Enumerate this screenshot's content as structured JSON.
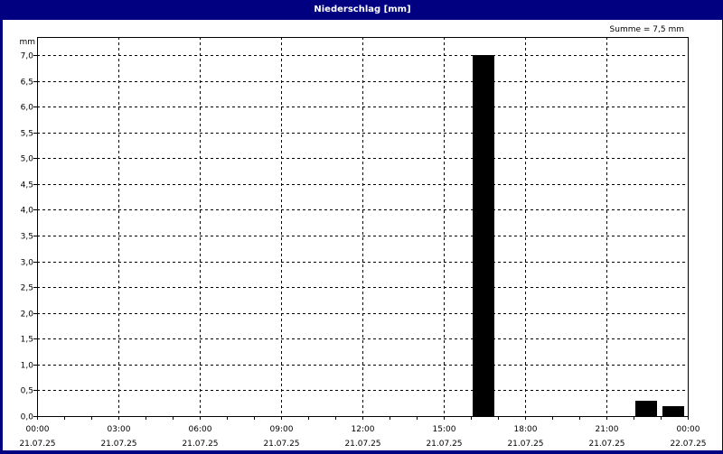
{
  "window": {
    "title": "Niederschlag [mm]"
  },
  "chart_data": {
    "type": "bar",
    "title": "Niederschlag [mm]",
    "ylabel": "mm",
    "annotation": "Summe = 7,5 mm",
    "ylim": [
      0,
      7.35
    ],
    "yticks": [
      "0,0",
      "0,5",
      "1,0",
      "1,5",
      "2,0",
      "2,5",
      "3,0",
      "3,5",
      "4,0",
      "4,5",
      "5,0",
      "5,5",
      "6,0",
      "6,5",
      "7,0"
    ],
    "xlim_hours": [
      0,
      24
    ],
    "xticks": [
      {
        "time": "00:00",
        "date": "21.07.25"
      },
      {
        "time": "03:00",
        "date": "21.07.25"
      },
      {
        "time": "06:00",
        "date": "21.07.25"
      },
      {
        "time": "09:00",
        "date": "21.07.25"
      },
      {
        "time": "12:00",
        "date": "21.07.25"
      },
      {
        "time": "15:00",
        "date": "21.07.25"
      },
      {
        "time": "18:00",
        "date": "21.07.25"
      },
      {
        "time": "21:00",
        "date": "21.07.25"
      },
      {
        "time": "00:00",
        "date": "22.07.25"
      }
    ],
    "grid": true,
    "bar_color": "#000000",
    "series": [
      {
        "values": [
          {
            "start_hour": 16,
            "value": 7.0
          },
          {
            "start_hour": 22,
            "value": 0.3
          },
          {
            "start_hour": 23,
            "value": 0.2
          }
        ]
      }
    ]
  }
}
